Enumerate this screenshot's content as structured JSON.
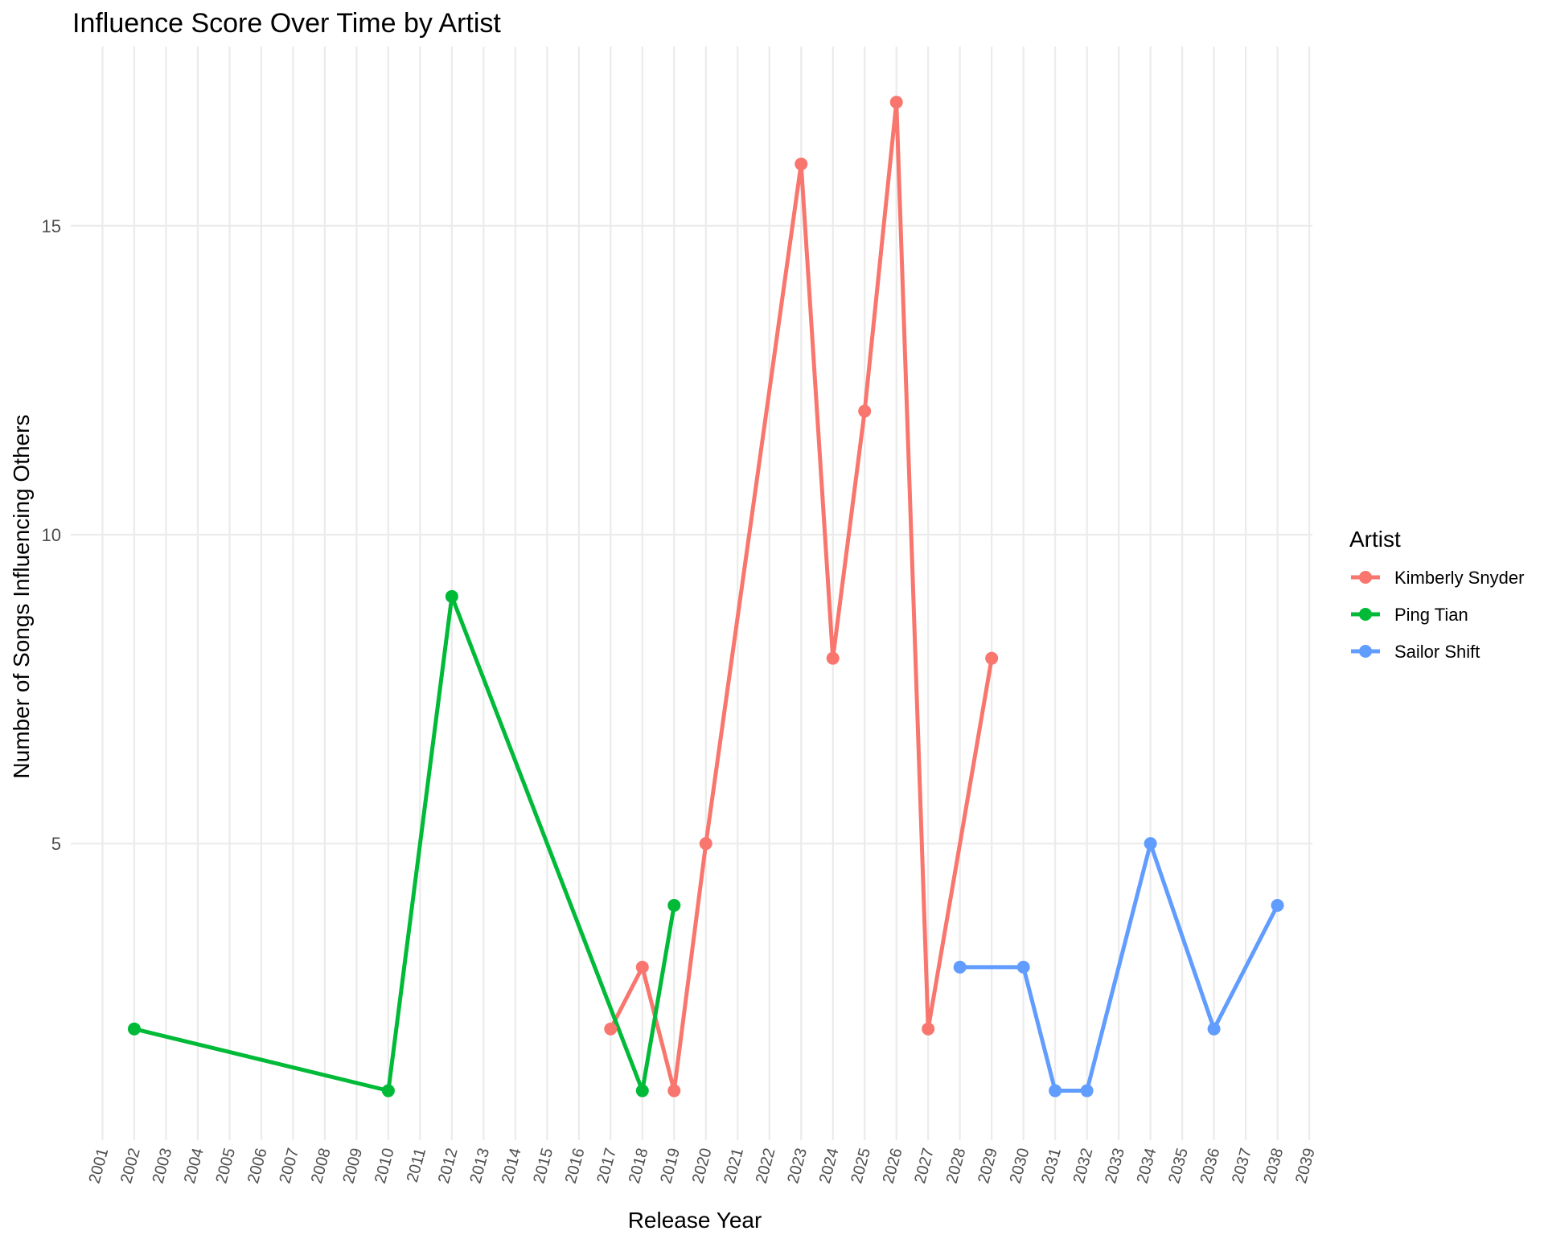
{
  "chart_data": {
    "type": "line",
    "title": "Influence Score Over Time by Artist",
    "xlabel": "Release Year",
    "ylabel": "Number of Songs Influencing Others",
    "x_ticks": [
      2001,
      2002,
      2003,
      2004,
      2005,
      2006,
      2007,
      2008,
      2009,
      2010,
      2011,
      2012,
      2013,
      2014,
      2015,
      2016,
      2017,
      2018,
      2019,
      2020,
      2021,
      2022,
      2023,
      2024,
      2025,
      2026,
      2027,
      2028,
      2029,
      2030,
      2031,
      2032,
      2033,
      2034,
      2035,
      2036,
      2037,
      2038,
      2039
    ],
    "y_ticks": [
      5,
      10,
      15
    ],
    "xlim": [
      2001,
      2039
    ],
    "ylim": [
      0.2,
      17.9
    ],
    "grid": true,
    "legend": {
      "title": "Artist",
      "position": "right"
    },
    "series": [
      {
        "name": "Kimberly Snyder",
        "color": "#F8766D",
        "x": [
          2017,
          2018,
          2019,
          2020,
          2023,
          2024,
          2025,
          2026,
          2027,
          2029
        ],
        "y": [
          2,
          3,
          1,
          5,
          16,
          8,
          12,
          17,
          2,
          8
        ]
      },
      {
        "name": "Ping Tian",
        "color": "#00BA38",
        "x": [
          2002,
          2010,
          2012,
          2018,
          2019
        ],
        "y": [
          2,
          1,
          9,
          1,
          4
        ]
      },
      {
        "name": "Sailor Shift",
        "color": "#619CFF",
        "x": [
          2028,
          2030,
          2031,
          2032,
          2034,
          2036,
          2038
        ],
        "y": [
          3,
          3,
          1,
          1,
          5,
          2,
          4
        ]
      }
    ]
  }
}
